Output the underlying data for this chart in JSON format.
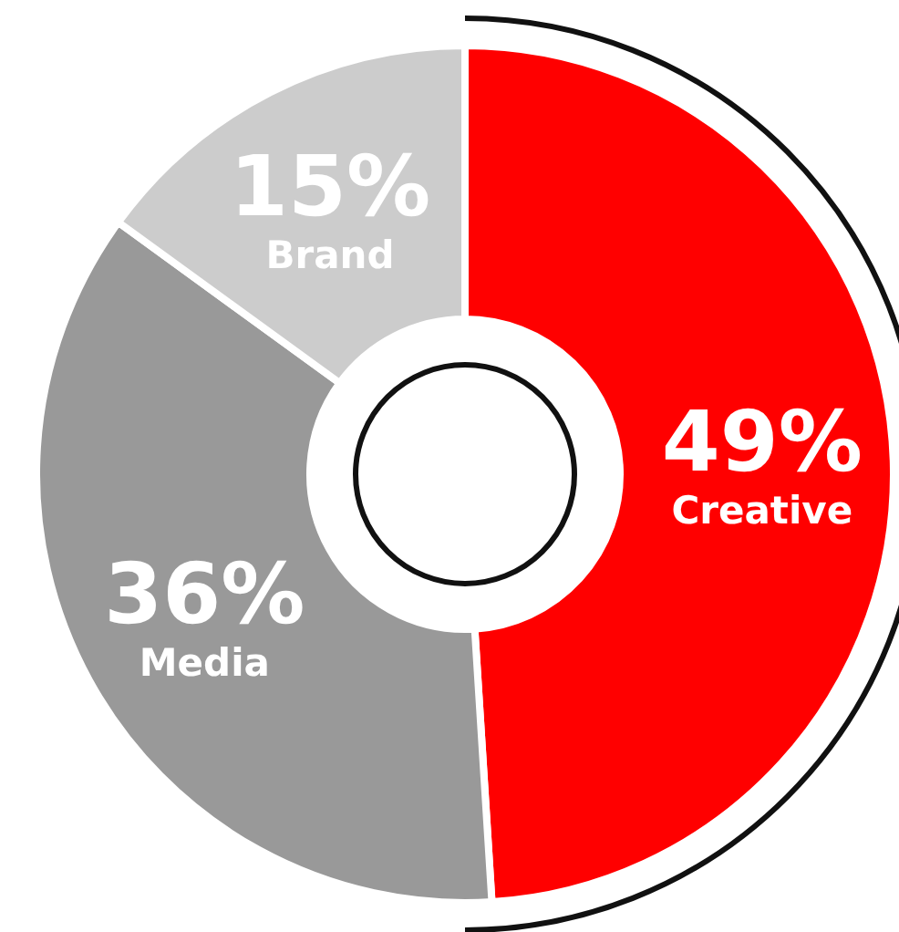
{
  "chart_data": {
    "type": "donut",
    "categories": [
      "Creative",
      "Media",
      "Brand"
    ],
    "values": [
      49,
      36,
      15
    ],
    "colors": [
      "#ff0000",
      "#999999",
      "#cccccc"
    ],
    "value_labels": [
      "49%",
      "36%",
      "15%"
    ],
    "legend": false
  }
}
